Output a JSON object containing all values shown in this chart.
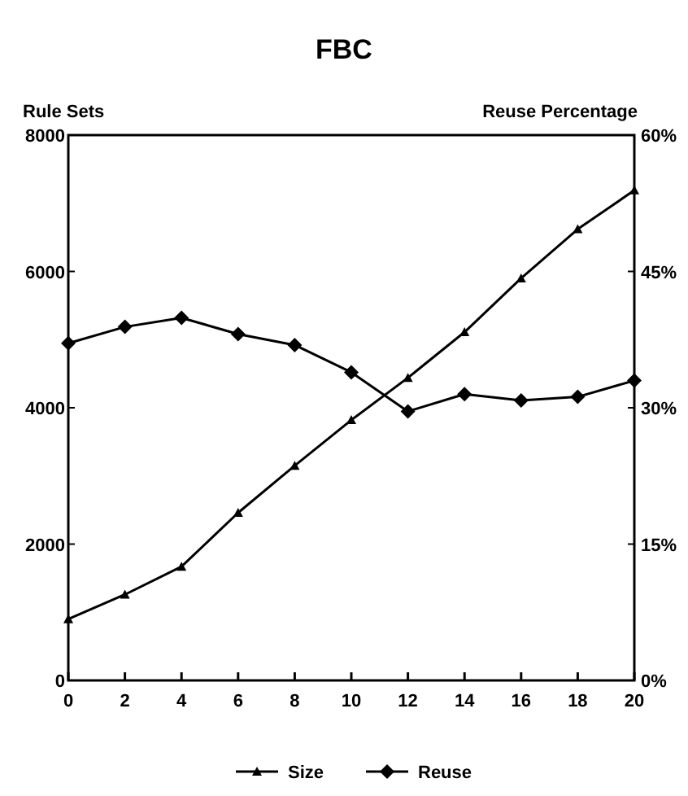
{
  "chart_data": {
    "type": "line",
    "title": "FBC",
    "ylabel": "Rule Sets",
    "y2label": "Reuse Percentage",
    "x": [
      0,
      2,
      4,
      6,
      8,
      10,
      12,
      14,
      16,
      18,
      20
    ],
    "xlim": [
      0,
      20
    ],
    "xticks": [
      0,
      2,
      4,
      6,
      8,
      10,
      12,
      14,
      16,
      18,
      20
    ],
    "ylim": [
      0,
      8000
    ],
    "yticks": [
      0,
      2000,
      4000,
      6000,
      8000
    ],
    "y2lim": [
      0,
      60
    ],
    "y2ticks": [
      {
        "value": 0,
        "label": "0%"
      },
      {
        "value": 15,
        "label": "15%"
      },
      {
        "value": 30,
        "label": "30%"
      },
      {
        "value": 45,
        "label": "45%"
      },
      {
        "value": 60,
        "label": "60%"
      }
    ],
    "series": [
      {
        "name": "Size",
        "color": "#000000",
        "marker": "triangle",
        "values": [
          900,
          1260,
          1670,
          2460,
          3150,
          3820,
          4440,
          5110,
          5900,
          6620,
          7190
        ]
      },
      {
        "name": "Reuse",
        "color": "#000000",
        "marker": "diamond",
        "axis": "y2",
        "values": [
          37.1,
          38.9,
          39.9,
          38.1,
          36.9,
          33.9,
          29.6,
          31.5,
          30.8,
          31.2,
          33.0
        ]
      }
    ],
    "grid": false,
    "legend": "bottom"
  }
}
